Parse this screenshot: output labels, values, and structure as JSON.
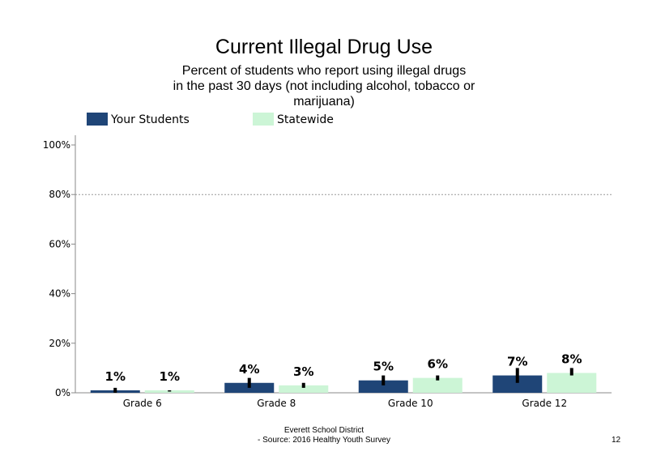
{
  "chart_data": {
    "type": "bar",
    "title": "Current Illegal Drug Use",
    "subtitle_lines": [
      "Percent of students who report using illegal drugs",
      "in the past 30 days (not including alcohol, tobacco or",
      "marijuana)"
    ],
    "categories": [
      "Grade 6",
      "Grade 8",
      "Grade 10",
      "Grade 12"
    ],
    "series": [
      {
        "name": "Your Students",
        "color": "#1f4577",
        "values": [
          1,
          4,
          5,
          7
        ],
        "labels": [
          "1%",
          "4%",
          "5%",
          "7%"
        ],
        "error_low": [
          0,
          2,
          3,
          4
        ],
        "error_high": [
          2,
          6,
          7,
          10
        ]
      },
      {
        "name": "Statewide",
        "color": "#ccf5d6",
        "values": [
          1,
          3,
          6,
          8
        ],
        "labels": [
          "1%",
          "3%",
          "6%",
          "8%"
        ],
        "error_low": [
          0.5,
          2,
          5,
          7
        ],
        "error_high": [
          1,
          4,
          7,
          10
        ]
      }
    ],
    "ylim": [
      0,
      100
    ],
    "yticks": [
      0,
      20,
      40,
      60,
      80,
      100
    ],
    "ytick_labels": [
      "0%",
      "20%",
      "40%",
      "60%",
      "80%",
      "100%"
    ],
    "gridlines": [
      80
    ],
    "legend_position": "top"
  },
  "footer": {
    "line1": "Everett School District",
    "line2": "- Source: 2016 Healthy Youth Survey",
    "page_number": "12"
  }
}
